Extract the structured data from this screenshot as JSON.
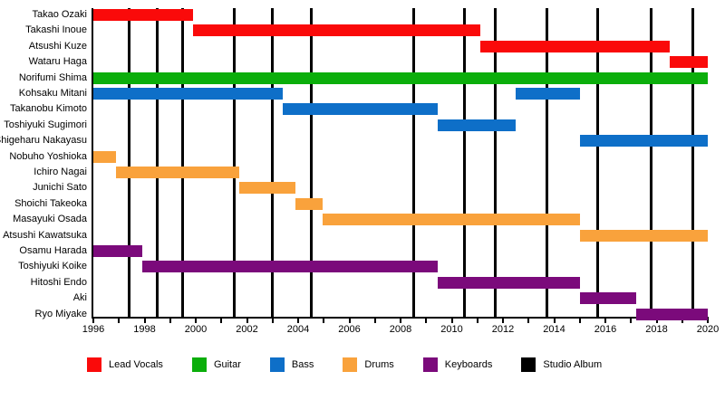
{
  "chart_data": {
    "type": "gantt",
    "title": "",
    "description": "Band member timeline: colored bars show each member's tenure by instrument; vertical black lines mark studio albums.",
    "x_axis": {
      "min": 1996,
      "max": 2020,
      "label_step": 2,
      "minor_tick_step": 1,
      "tick_labels": [
        "1996",
        "1998",
        "2000",
        "2002",
        "2004",
        "2006",
        "2008",
        "2010",
        "2012",
        "2014",
        "2016",
        "2018",
        "2020"
      ]
    },
    "rows": [
      {
        "name": "Takao Ozaki",
        "role": "Lead Vocals",
        "segments": [
          [
            1996.0,
            1999.9
          ]
        ]
      },
      {
        "name": "Takashi Inoue",
        "role": "Lead Vocals",
        "segments": [
          [
            1999.9,
            2011.1
          ]
        ]
      },
      {
        "name": "Atsushi Kuze",
        "role": "Lead Vocals",
        "segments": [
          [
            2011.1,
            2018.5
          ]
        ]
      },
      {
        "name": "Wataru Haga",
        "role": "Lead Vocals",
        "segments": [
          [
            2018.5,
            2020.0
          ]
        ]
      },
      {
        "name": "Norifumi Shima",
        "role": "Guitar",
        "segments": [
          [
            1996.0,
            2020.0
          ]
        ]
      },
      {
        "name": "Kohsaku Mitani",
        "role": "Bass",
        "segments": [
          [
            1996.0,
            2003.4
          ],
          [
            2012.5,
            2015.0
          ]
        ]
      },
      {
        "name": "Takanobu Kimoto",
        "role": "Bass",
        "segments": [
          [
            2003.4,
            2009.45
          ]
        ]
      },
      {
        "name": "Toshiyuki Sugimori",
        "role": "Bass",
        "segments": [
          [
            2009.45,
            2012.5
          ]
        ]
      },
      {
        "name": "Shigeharu Nakayasu",
        "role": "Bass",
        "segments": [
          [
            2015.0,
            2020.0
          ]
        ]
      },
      {
        "name": "Nobuho Yoshioka",
        "role": "Drums",
        "segments": [
          [
            1996.0,
            1996.9
          ]
        ]
      },
      {
        "name": "Ichiro Nagai",
        "role": "Drums",
        "segments": [
          [
            1996.9,
            2001.7
          ]
        ]
      },
      {
        "name": "Junichi Sato",
        "role": "Drums",
        "segments": [
          [
            2001.7,
            2003.9
          ]
        ]
      },
      {
        "name": "Shoichi Takeoka",
        "role": "Drums",
        "segments": [
          [
            2003.9,
            2004.95
          ]
        ]
      },
      {
        "name": "Masayuki Osada",
        "role": "Drums",
        "segments": [
          [
            2004.95,
            2015.0
          ]
        ]
      },
      {
        "name": "Atsushi Kawatsuka",
        "role": "Drums",
        "segments": [
          [
            2015.0,
            2020.0
          ]
        ]
      },
      {
        "name": "Osamu Harada",
        "role": "Keyboards",
        "segments": [
          [
            1996.0,
            1997.9
          ]
        ]
      },
      {
        "name": "Toshiyuki Koike",
        "role": "Keyboards",
        "segments": [
          [
            1997.9,
            2009.45
          ]
        ]
      },
      {
        "name": "Hitoshi Endo",
        "role": "Keyboards",
        "segments": [
          [
            2009.45,
            2015.0
          ]
        ]
      },
      {
        "name": "Aki",
        "role": "Keyboards",
        "segments": [
          [
            2015.0,
            2017.2
          ]
        ]
      },
      {
        "name": "Ryo Miyake",
        "role": "Keyboards",
        "segments": [
          [
            2017.2,
            2020.0
          ]
        ]
      }
    ],
    "album_lines_years": [
      1997.4,
      1998.5,
      1999.5,
      2001.5,
      2003.0,
      2004.5,
      2008.5,
      2010.5,
      2011.7,
      2013.7,
      2015.7,
      2017.8,
      2019.4
    ],
    "legend": [
      {
        "label": "Lead Vocals",
        "color": "#FA0A0A"
      },
      {
        "label": "Guitar",
        "color": "#0BAE0B"
      },
      {
        "label": "Bass",
        "color": "#0E6FC8"
      },
      {
        "label": "Drums",
        "color": "#F9A23C"
      },
      {
        "label": "Keyboards",
        "color": "#7B0A7B"
      },
      {
        "label": "Studio Album",
        "color": "#000000"
      }
    ],
    "legend_position": "bottom",
    "grid": false
  }
}
